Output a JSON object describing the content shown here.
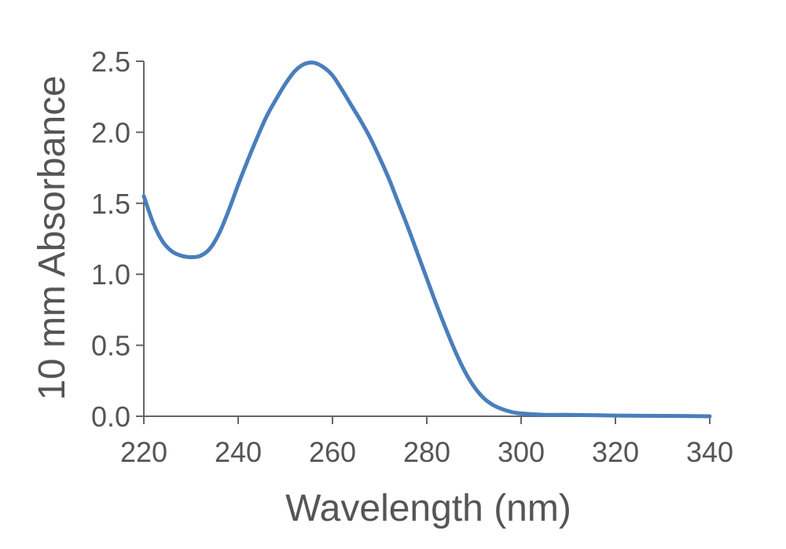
{
  "chart_data": {
    "type": "line",
    "title": "",
    "xlabel": "Wavelength (nm)",
    "ylabel": "10 mm Absorbance",
    "xlim": [
      220,
      340
    ],
    "ylim": [
      0,
      2.5
    ],
    "x_ticks": [
      "220",
      "240",
      "260",
      "280",
      "300",
      "320",
      "340"
    ],
    "y_ticks": [
      "0.0",
      "0.5",
      "1.0",
      "1.5",
      "2.0",
      "2.5"
    ],
    "grid": false,
    "legend": "none",
    "series": [
      {
        "color": "#4a7ebb",
        "points": [
          [
            220,
            1.55
          ],
          [
            222,
            1.36
          ],
          [
            224,
            1.23
          ],
          [
            226,
            1.16
          ],
          [
            228,
            1.13
          ],
          [
            230,
            1.12
          ],
          [
            232,
            1.13
          ],
          [
            234,
            1.18
          ],
          [
            236,
            1.29
          ],
          [
            238,
            1.45
          ],
          [
            240,
            1.63
          ],
          [
            242,
            1.8
          ],
          [
            244,
            1.96
          ],
          [
            246,
            2.11
          ],
          [
            248,
            2.23
          ],
          [
            250,
            2.34
          ],
          [
            252,
            2.43
          ],
          [
            254,
            2.48
          ],
          [
            256,
            2.49
          ],
          [
            258,
            2.46
          ],
          [
            260,
            2.4
          ],
          [
            262,
            2.3
          ],
          [
            264,
            2.19
          ],
          [
            266,
            2.08
          ],
          [
            268,
            1.96
          ],
          [
            270,
            1.82
          ],
          [
            272,
            1.67
          ],
          [
            274,
            1.5
          ],
          [
            276,
            1.33
          ],
          [
            278,
            1.15
          ],
          [
            280,
            0.97
          ],
          [
            282,
            0.79
          ],
          [
            284,
            0.62
          ],
          [
            286,
            0.46
          ],
          [
            288,
            0.32
          ],
          [
            290,
            0.21
          ],
          [
            292,
            0.13
          ],
          [
            294,
            0.08
          ],
          [
            296,
            0.05
          ],
          [
            298,
            0.03
          ],
          [
            300,
            0.02
          ],
          [
            305,
            0.01
          ],
          [
            310,
            0.01
          ],
          [
            320,
            0.005
          ],
          [
            330,
            0.003
          ],
          [
            340,
            0.0
          ]
        ]
      }
    ]
  }
}
